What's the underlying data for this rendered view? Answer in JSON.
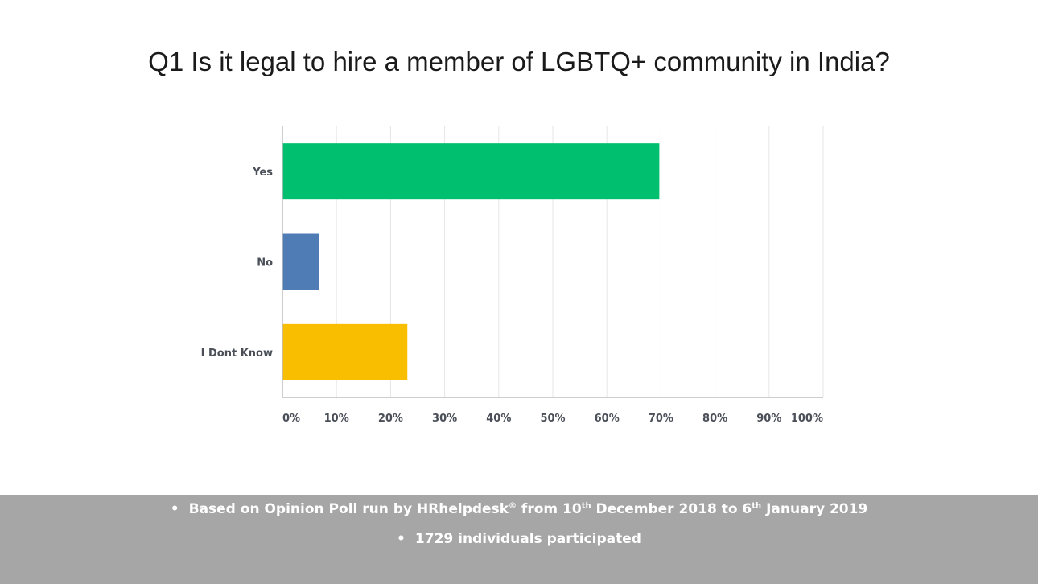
{
  "chart_data": {
    "type": "bar",
    "orientation": "horizontal",
    "title": "Q1 Is it legal to hire a member of LGBTQ+ community in India?",
    "categories": [
      "Yes",
      "No",
      "I Dont Know"
    ],
    "values": [
      69.7,
      6.8,
      23.1
    ],
    "colors": [
      "#00bf6f",
      "#507cb6",
      "#f9be00"
    ],
    "xlim": [
      0,
      100
    ],
    "ticks": [
      "0%",
      "10%",
      "20%",
      "30%",
      "40%",
      "50%",
      "60%",
      "70%",
      "80%",
      "90%",
      "100%"
    ],
    "grid": "vertical",
    "legend": "none"
  },
  "notes": {
    "bullet": "•",
    "line1": {
      "prefix": "Based on Opinion Poll run by HRhelpdesk",
      "mark": "®",
      "mid1": " from 10",
      "sup1": "th",
      "mid2": " December 2018 to 6",
      "sup2": "th",
      "suffix": " January 2019"
    },
    "line2": "1729 individuals participated"
  },
  "colors": {
    "footer_bg": "#a6a6a6",
    "grid": "#e6e6e6",
    "axis": "#bdbdbd"
  }
}
